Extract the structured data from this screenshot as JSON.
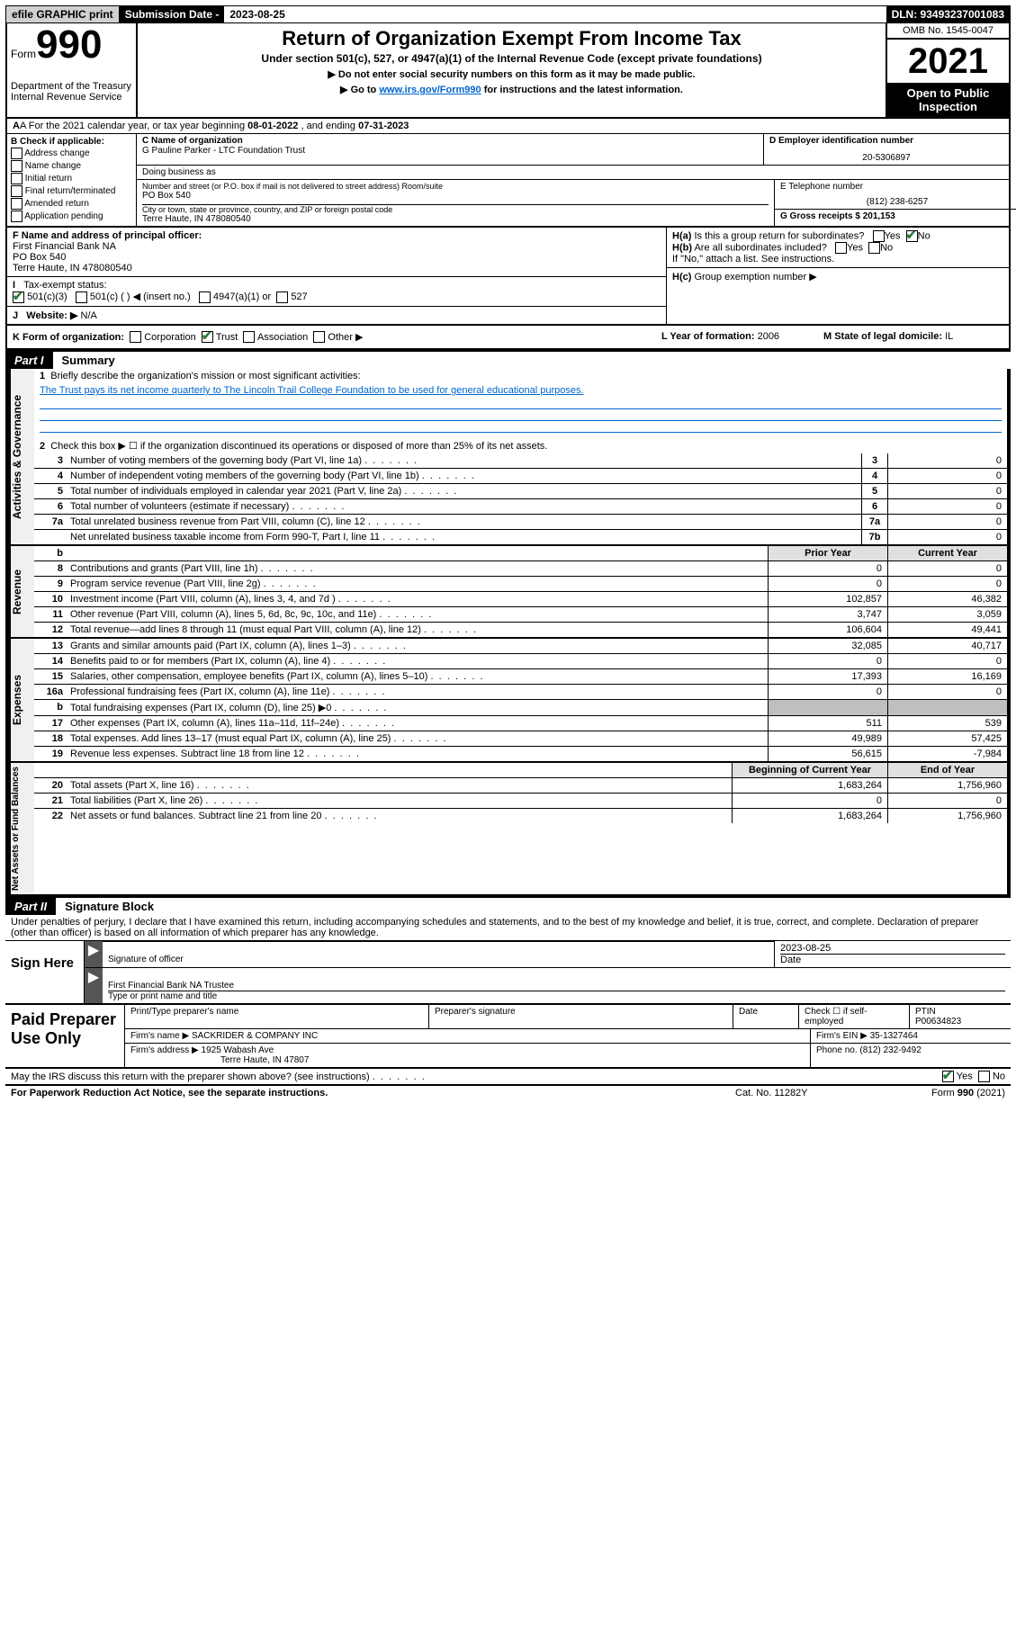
{
  "top_bar": {
    "efile": "efile GRAPHIC print",
    "subm_label": "Submission Date -",
    "subm_date": "2023-08-25",
    "dln": "DLN: 93493237001083"
  },
  "header": {
    "form_word": "Form",
    "form_num": "990",
    "dept": "Department of the Treasury\nInternal Revenue Service",
    "title": "Return of Organization Exempt From Income Tax",
    "sub1": "Under section 501(c), 527, or 4947(a)(1) of the Internal Revenue Code (except private foundations)",
    "sub2": "▶ Do not enter social security numbers on this form as it may be made public.",
    "sub3_pre": "▶ Go to ",
    "sub3_link": "www.irs.gov/Form990",
    "sub3_post": " for instructions and the latest information.",
    "omb": "OMB No. 1545-0047",
    "year": "2021",
    "open_pub": "Open to Public Inspection"
  },
  "lineA": {
    "pre": "A For the 2021 calendar year, or tax year beginning ",
    "begin": "08-01-2022",
    "mid": " , and ending ",
    "end": "07-31-2023"
  },
  "boxB": {
    "hdr": "B Check if applicable:",
    "opts": [
      "Address change",
      "Name change",
      "Initial return",
      "Final return/terminated",
      "Amended return",
      "Application pending"
    ]
  },
  "boxC": {
    "lbl": "C Name of organization",
    "name": "G Pauline Parker - LTC Foundation Trust",
    "dba_lbl": "Doing business as",
    "addr_lbl": "Number and street (or P.O. box if mail is not delivered to street address)     Room/suite",
    "addr": "PO Box 540",
    "city_lbl": "City or town, state or province, country, and ZIP or foreign postal code",
    "city": "Terre Haute, IN  478080540"
  },
  "boxD": {
    "lbl": "D Employer identification number",
    "val": "20-5306897"
  },
  "boxE": {
    "lbl": "E Telephone number",
    "val": "(812) 238-6257"
  },
  "boxG": {
    "lbl": "G Gross receipts $",
    "val": "201,153"
  },
  "boxF": {
    "lbl": "F Name and address of principal officer:",
    "name": "First Financial Bank NA",
    "addr": "PO Box 540",
    "city": "Terre Haute, IN  478080540"
  },
  "boxH": {
    "ha": "Is this a group return for subordinates?",
    "hb": "Are all subordinates included?",
    "hnote": "If \"No,\" attach a list. See instructions.",
    "hc": "Group exemption number ▶",
    "yes": "Yes",
    "no": "No"
  },
  "lineI": {
    "lbl": "Tax-exempt status:",
    "opt1": "501(c)(3)",
    "opt2": "501(c) (  ) ◀ (insert no.)",
    "opt3": "4947(a)(1) or",
    "opt4": "527"
  },
  "lineJ": {
    "lbl": "Website: ▶",
    "val": "N/A"
  },
  "lineK": {
    "lbl": "K Form of organization:",
    "corp": "Corporation",
    "trust": "Trust",
    "assoc": "Association",
    "other": "Other ▶"
  },
  "lineL": {
    "lbl": "L Year of formation:",
    "val": "2006"
  },
  "lineM": {
    "lbl": "M State of legal domicile:",
    "val": "IL"
  },
  "partI": {
    "num": "Part I",
    "title": "Summary"
  },
  "summary": {
    "q1": "Briefly describe the organization's mission or most significant activities:",
    "mission": "The Trust pays its net income quarterly to The Lincoln Trail College Foundation to be used for general educational purposes.",
    "q2": "Check this box ▶ ☐ if the organization discontinued its operations or disposed of more than 25% of its net assets.",
    "prior_hdr": "Prior Year",
    "curr_hdr": "Current Year",
    "boy_hdr": "Beginning of Current Year",
    "eoy_hdr": "End of Year",
    "rows_top": [
      {
        "n": "3",
        "d": "Number of voting members of the governing body (Part VI, line 1a)",
        "box": "3",
        "v": "0"
      },
      {
        "n": "4",
        "d": "Number of independent voting members of the governing body (Part VI, line 1b)",
        "box": "4",
        "v": "0"
      },
      {
        "n": "5",
        "d": "Total number of individuals employed in calendar year 2021 (Part V, line 2a)",
        "box": "5",
        "v": "0"
      },
      {
        "n": "6",
        "d": "Total number of volunteers (estimate if necessary)",
        "box": "6",
        "v": "0"
      },
      {
        "n": "7a",
        "d": "Total unrelated business revenue from Part VIII, column (C), line 12",
        "box": "7a",
        "v": "0"
      },
      {
        "n": "",
        "d": "Net unrelated business taxable income from Form 990-T, Part I, line 11",
        "box": "7b",
        "v": "0"
      }
    ],
    "rows_rev": [
      {
        "n": "8",
        "d": "Contributions and grants (Part VIII, line 1h)",
        "p": "0",
        "c": "0"
      },
      {
        "n": "9",
        "d": "Program service revenue (Part VIII, line 2g)",
        "p": "0",
        "c": "0"
      },
      {
        "n": "10",
        "d": "Investment income (Part VIII, column (A), lines 3, 4, and 7d )",
        "p": "102,857",
        "c": "46,382"
      },
      {
        "n": "11",
        "d": "Other revenue (Part VIII, column (A), lines 5, 6d, 8c, 9c, 10c, and 11e)",
        "p": "3,747",
        "c": "3,059"
      },
      {
        "n": "12",
        "d": "Total revenue—add lines 8 through 11 (must equal Part VIII, column (A), line 12)",
        "p": "106,604",
        "c": "49,441"
      }
    ],
    "rows_exp": [
      {
        "n": "13",
        "d": "Grants and similar amounts paid (Part IX, column (A), lines 1–3)",
        "p": "32,085",
        "c": "40,717"
      },
      {
        "n": "14",
        "d": "Benefits paid to or for members (Part IX, column (A), line 4)",
        "p": "0",
        "c": "0"
      },
      {
        "n": "15",
        "d": "Salaries, other compensation, employee benefits (Part IX, column (A), lines 5–10)",
        "p": "17,393",
        "c": "16,169"
      },
      {
        "n": "16a",
        "d": "Professional fundraising fees (Part IX, column (A), line 11e)",
        "p": "0",
        "c": "0"
      },
      {
        "n": "b",
        "d": "Total fundraising expenses (Part IX, column (D), line 25) ▶0",
        "p": "",
        "c": "",
        "grey": true
      },
      {
        "n": "17",
        "d": "Other expenses (Part IX, column (A), lines 11a–11d, 11f–24e)",
        "p": "511",
        "c": "539"
      },
      {
        "n": "18",
        "d": "Total expenses. Add lines 13–17 (must equal Part IX, column (A), line 25)",
        "p": "49,989",
        "c": "57,425"
      },
      {
        "n": "19",
        "d": "Revenue less expenses. Subtract line 18 from line 12",
        "p": "56,615",
        "c": "-7,984"
      }
    ],
    "rows_na": [
      {
        "n": "20",
        "d": "Total assets (Part X, line 16)",
        "p": "1,683,264",
        "c": "1,756,960"
      },
      {
        "n": "21",
        "d": "Total liabilities (Part X, line 26)",
        "p": "0",
        "c": "0"
      },
      {
        "n": "22",
        "d": "Net assets or fund balances. Subtract line 21 from line 20",
        "p": "1,683,264",
        "c": "1,756,960"
      }
    ],
    "tab_gov": "Activities & Governance",
    "tab_rev": "Revenue",
    "tab_exp": "Expenses",
    "tab_na": "Net Assets or\nFund Balances"
  },
  "partII": {
    "num": "Part II",
    "title": "Signature Block"
  },
  "sig": {
    "decl": "Under penalties of perjury, I declare that I have examined this return, including accompanying schedules and statements, and to the best of my knowledge and belief, it is true, correct, and complete. Declaration of preparer (other than officer) is based on all information of which preparer has any knowledge.",
    "sign_here": "Sign Here",
    "sig_officer": "Signature of officer",
    "date_lbl": "Date",
    "date_val": "2023-08-25",
    "name_title": "First Financial Bank NA  Trustee",
    "type_name": "Type or print name and title"
  },
  "prep": {
    "label": "Paid Preparer Use Only",
    "h_name": "Print/Type preparer's name",
    "h_sig": "Preparer's signature",
    "h_date": "Date",
    "h_check": "Check ☐ if self-employed",
    "h_ptin": "PTIN",
    "ptin": "P00634823",
    "firm_lbl": "Firm's name    ▶",
    "firm": "SACKRIDER & COMPANY INC",
    "ein_lbl": "Firm's EIN ▶",
    "ein": "35-1327464",
    "addr_lbl": "Firm's address ▶",
    "addr1": "1925 Wabash Ave",
    "addr2": "Terre Haute, IN  47807",
    "phone_lbl": "Phone no.",
    "phone": "(812) 232-9492"
  },
  "discuss": "May the IRS discuss this return with the preparer shown above? (see instructions)",
  "footer": {
    "left": "For Paperwork Reduction Act Notice, see the separate instructions.",
    "center": "Cat. No. 11282Y",
    "right": "Form 990 (2021)"
  }
}
